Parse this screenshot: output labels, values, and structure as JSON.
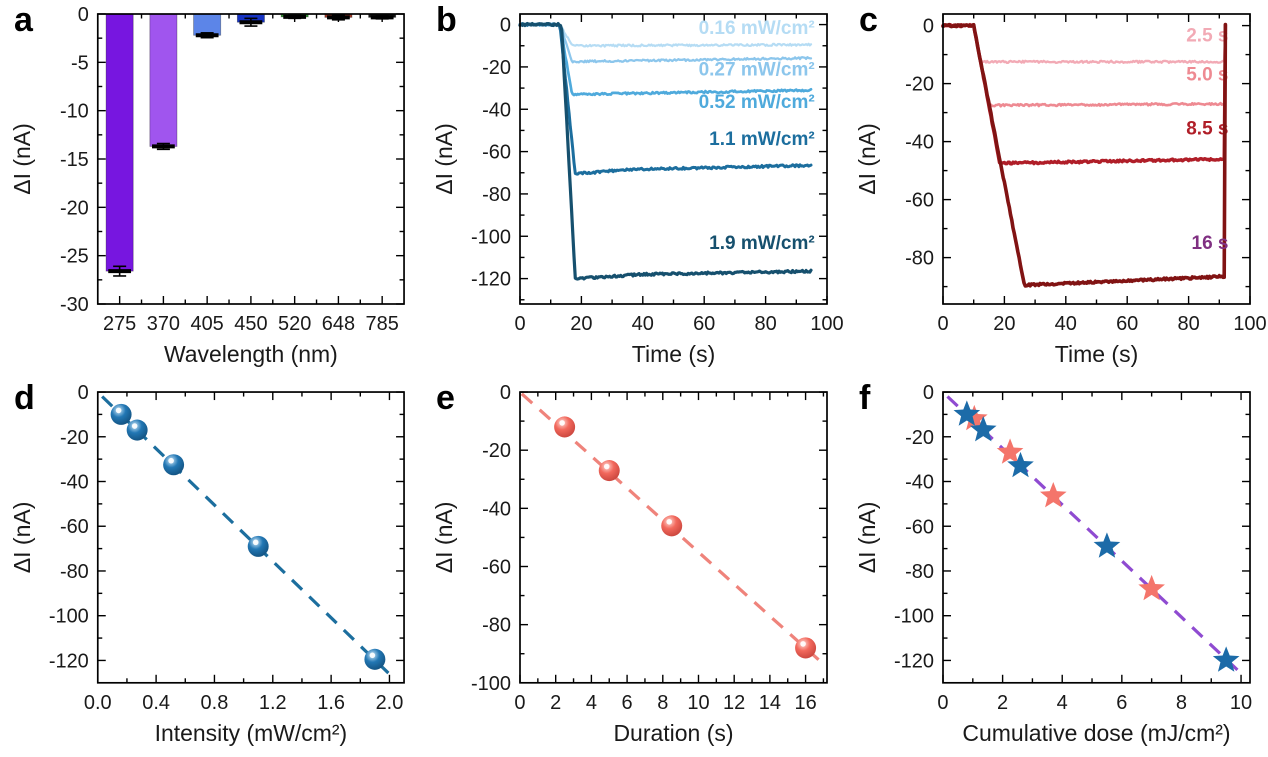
{
  "figure": {
    "background": "#ffffff",
    "ylabel_shared": "ΔI (nA)"
  },
  "chart_data": [
    {
      "id": "a",
      "letter": "a",
      "type": "bar",
      "xlabel": "Wavelength (nm)",
      "ylabel": "ΔI (nA)",
      "categories": [
        "275",
        "370",
        "405",
        "450",
        "520",
        "648",
        "785"
      ],
      "values": [
        -26.6,
        -13.7,
        -2.2,
        -0.85,
        -0.3,
        -0.35,
        -0.35
      ],
      "errors": [
        0.5,
        0.3,
        0.25,
        0.4,
        0.15,
        0.25,
        0.15
      ],
      "bar_colors": [
        "#7716e0",
        "#a055ee",
        "#5c85e8",
        "#1633c4",
        "#2f8f2f",
        "#9b3a28",
        "#161616"
      ],
      "ylim": [
        0,
        -30
      ],
      "yticks": [
        0,
        -5,
        -10,
        -15,
        -20,
        -25,
        -30
      ],
      "ytick_labels": [
        "0",
        "-5",
        "-10",
        "-15",
        "-20",
        "-25",
        "-30"
      ],
      "yminor": 2.5
    },
    {
      "id": "b",
      "letter": "b",
      "type": "line",
      "xlabel": "Time (s)",
      "ylabel": "ΔI (nA)",
      "xlim": [
        0,
        100
      ],
      "xticks": [
        0,
        20,
        40,
        60,
        80,
        100
      ],
      "xtick_labels": [
        "0",
        "20",
        "40",
        "60",
        "80",
        "100"
      ],
      "xminor": 10,
      "ylim": [
        5,
        -132
      ],
      "yticks": [
        0,
        -20,
        -40,
        -60,
        -80,
        -100,
        -120
      ],
      "ytick_labels": [
        "0",
        "-20",
        "-40",
        "-60",
        "-80",
        "-100",
        "-120"
      ],
      "yminor": 10,
      "series": [
        {
          "label": "0.16 mW/cm²",
          "color": "#b5dcf4",
          "width": 2.2,
          "noise": 0.45,
          "label_pos": [
            96,
            -4.5
          ],
          "points": [
            [
              0,
              0
            ],
            [
              13,
              0
            ],
            [
              17,
              -10
            ],
            [
              95,
              -9.5
            ]
          ]
        },
        {
          "label": "0.27 mW/cm²",
          "color": "#8cc6ec",
          "width": 2.3,
          "noise": 0.45,
          "label_pos": [
            96,
            -24
          ],
          "points": [
            [
              0,
              0
            ],
            [
              13,
              0
            ],
            [
              17,
              -17.5
            ],
            [
              95,
              -15.8
            ]
          ]
        },
        {
          "label": "0.52 mW/cm²",
          "color": "#4faadc",
          "width": 2.7,
          "noise": 0.45,
          "label_pos": [
            96,
            -39.5
          ],
          "points": [
            [
              0,
              0
            ],
            [
              13,
              0
            ],
            [
              17,
              -33
            ],
            [
              95,
              -31
            ]
          ]
        },
        {
          "label": "1.1 mW/cm²",
          "color": "#1c6e9e",
          "width": 3.0,
          "noise": 0.5,
          "label_pos": [
            96,
            -57
          ],
          "points": [
            [
              0,
              0
            ],
            [
              13,
              0
            ],
            [
              18,
              -70.5
            ],
            [
              35,
              -68.5
            ],
            [
              95,
              -66.5
            ]
          ]
        },
        {
          "label": "1.9 mW/cm²",
          "color": "#16506e",
          "width": 3.2,
          "noise": 0.5,
          "label_pos": [
            96,
            -106
          ],
          "points": [
            [
              0,
              0
            ],
            [
              13.5,
              0
            ],
            [
              18,
              -120
            ],
            [
              40,
              -118
            ],
            [
              95,
              -116.5
            ]
          ]
        }
      ]
    },
    {
      "id": "c",
      "letter": "c",
      "type": "line",
      "xlabel": "Time (s)",
      "ylabel": "ΔI (nA)",
      "xlim": [
        0,
        100
      ],
      "xticks": [
        0,
        20,
        40,
        60,
        80,
        100
      ],
      "xtick_labels": [
        "0",
        "20",
        "40",
        "60",
        "80",
        "100"
      ],
      "xminor": 10,
      "ylim": [
        4,
        -96
      ],
      "yticks": [
        0,
        -20,
        -40,
        -60,
        -80
      ],
      "ytick_labels": [
        "0",
        "-20",
        "-40",
        "-60",
        "-80"
      ],
      "yminor": 10,
      "series": [
        {
          "label": "2.5 s",
          "color": "#f2aab5",
          "width": 2.4,
          "noise": 0.35,
          "label_pos": [
            93,
            -5.5
          ],
          "points": [
            [
              0,
              0
            ],
            [
              10,
              0
            ],
            [
              12.5,
              -12.5
            ],
            [
              92,
              -12.5
            ]
          ]
        },
        {
          "label": "5.0 s",
          "color": "#ee8a92",
          "width": 2.6,
          "noise": 0.35,
          "label_pos": [
            93,
            -19
          ],
          "points": [
            [
              0,
              0
            ],
            [
              10,
              0
            ],
            [
              15,
              -27.5
            ],
            [
              92,
              -27
            ]
          ]
        },
        {
          "label": "8.5 s",
          "color": "#b01e28",
          "width": 3.4,
          "noise": 0.35,
          "label_pos": [
            93,
            -37.5
          ],
          "points": [
            [
              0,
              0
            ],
            [
              10,
              0
            ],
            [
              18.5,
              -47.5
            ],
            [
              92,
              -46
            ]
          ]
        },
        {
          "label": "16 s",
          "color": "#811313",
          "label_color": "#803082",
          "width": 3.6,
          "noise": 0.35,
          "label_pos": [
            93,
            -77
          ],
          "points": [
            [
              0,
              0
            ],
            [
              10,
              0
            ],
            [
              26.5,
              -89.5
            ],
            [
              92,
              -86.5
            ]
          ]
        }
      ]
    },
    {
      "id": "d",
      "letter": "d",
      "type": "scatter",
      "xlabel": "Intensity (mW/cm²)",
      "ylabel": "ΔI (nA)",
      "xlim": [
        0,
        2.1
      ],
      "xticks": [
        0,
        0.4,
        0.8,
        1.2,
        1.6,
        2.0
      ],
      "xtick_labels": [
        "0.0",
        "0.4",
        "0.8",
        "1.2",
        "1.6",
        "2.0"
      ],
      "xminor": 0.2,
      "ylim": [
        0,
        -130
      ],
      "yticks": [
        0,
        -20,
        -40,
        -60,
        -80,
        -100,
        -120
      ],
      "ytick_labels": [
        "0",
        "-20",
        "-40",
        "-60",
        "-80",
        "-100",
        "-120"
      ],
      "yminor": 10,
      "trendline": {
        "color": "#1c6e9e",
        "points": [
          [
            0.03,
            -2
          ],
          [
            2.03,
            -128
          ]
        ]
      },
      "marker": {
        "shape": "sphere",
        "light": "#cde8fa",
        "main": "#2277b4",
        "dark": "#12507e"
      },
      "points": [
        [
          0.16,
          -10
        ],
        [
          0.27,
          -17
        ],
        [
          0.52,
          -32.5
        ],
        [
          1.1,
          -69
        ],
        [
          1.9,
          -119.5
        ]
      ]
    },
    {
      "id": "e",
      "letter": "e",
      "type": "scatter",
      "xlabel": "Duration (s)",
      "ylabel": "ΔI (nA)",
      "xlim": [
        0,
        17.2
      ],
      "xticks": [
        0,
        2,
        4,
        6,
        8,
        10,
        12,
        14,
        16
      ],
      "xtick_labels": [
        "0",
        "2",
        "4",
        "6",
        "8",
        "10",
        "12",
        "14",
        "16"
      ],
      "xminor": 1,
      "ylim": [
        0,
        -100
      ],
      "yticks": [
        0,
        -20,
        -40,
        -60,
        -80,
        -100
      ],
      "ytick_labels": [
        "0",
        "-20",
        "-40",
        "-60",
        "-80",
        "-100"
      ],
      "yminor": 10,
      "trendline": {
        "color": "#ef837b",
        "points": [
          [
            0.1,
            -0.6
          ],
          [
            16.9,
            -93
          ]
        ]
      },
      "marker": {
        "shape": "sphere",
        "light": "#ffdbd5",
        "main": "#f2685c",
        "dark": "#c8443c"
      },
      "points": [
        [
          2.5,
          -12
        ],
        [
          5,
          -27
        ],
        [
          8.5,
          -46
        ],
        [
          16,
          -88
        ]
      ]
    },
    {
      "id": "f",
      "letter": "f",
      "type": "scatter",
      "xlabel": "Cumulative dose (mJ/cm²)",
      "ylabel": "ΔI (nA)",
      "xlim": [
        0,
        10.3
      ],
      "xticks": [
        0,
        2,
        4,
        6,
        8,
        10
      ],
      "xtick_labels": [
        "0",
        "2",
        "4",
        "6",
        "8",
        "10"
      ],
      "xminor": 1,
      "ylim": [
        0,
        -130
      ],
      "yticks": [
        0,
        -20,
        -40,
        -60,
        -80,
        -100,
        -120
      ],
      "ytick_labels": [
        "0",
        "-20",
        "-40",
        "-60",
        "-80",
        "-100",
        "-120"
      ],
      "yminor": 10,
      "trendline": {
        "color": "#8f4bd1",
        "points": [
          [
            0.15,
            -2
          ],
          [
            9.9,
            -124.5
          ]
        ]
      },
      "star_series": [
        {
          "name": "duration-series",
          "color": "#f4756b",
          "points": [
            [
              1.05,
              -12
            ],
            [
              2.25,
              -27
            ],
            [
              3.7,
              -46.5
            ],
            [
              7.0,
              -88
            ]
          ]
        },
        {
          "name": "intensity-series",
          "color": "#1c6ba8",
          "points": [
            [
              0.8,
              -10
            ],
            [
              1.35,
              -17
            ],
            [
              2.6,
              -33
            ],
            [
              5.5,
              -69
            ],
            [
              9.5,
              -120
            ]
          ]
        }
      ]
    }
  ]
}
